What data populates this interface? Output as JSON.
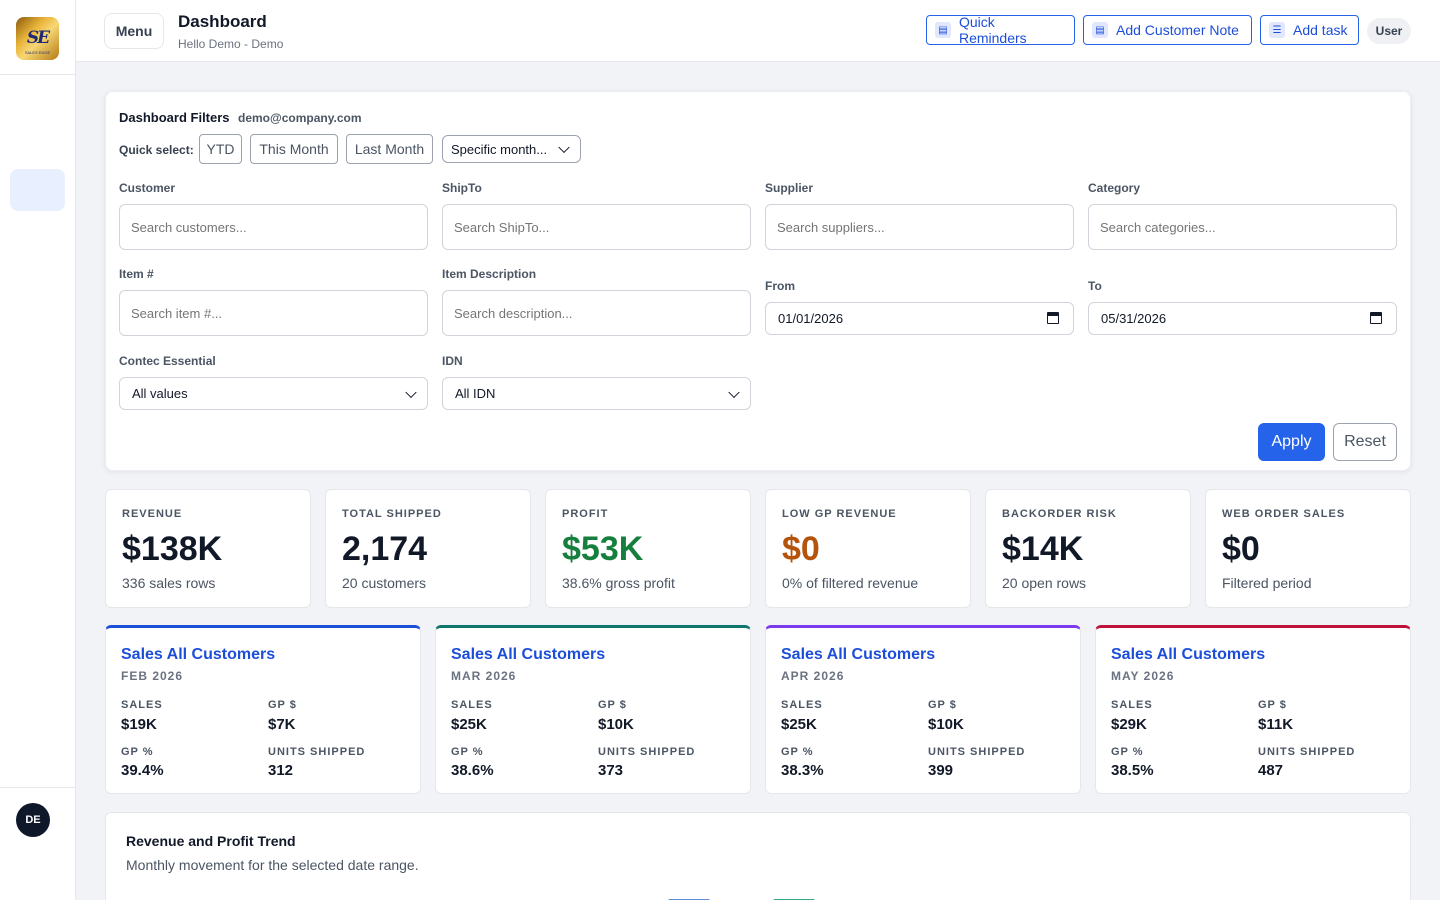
{
  "sidebar": {
    "logo_mark": "SE",
    "logo_sub": "SALES EDGE",
    "avatar": "DE"
  },
  "header": {
    "menu_label": "Menu",
    "title": "Dashboard",
    "subtitle": "Hello Demo - Demo",
    "buttons": [
      {
        "label": "Quick Reminders",
        "icon": "reminder-icon"
      },
      {
        "label": "Add Customer Note",
        "icon": "note-icon"
      },
      {
        "label": "Add task",
        "icon": "task-list-icon"
      }
    ],
    "user_label": "User"
  },
  "filters": {
    "title": "Dashboard Filters",
    "email": "demo@company.com",
    "quick_select_label": "Quick select:",
    "quick_chips": [
      "YTD",
      "This Month",
      "Last Month"
    ],
    "month_select": "Specific month...",
    "customer": {
      "label": "Customer",
      "placeholder": "Search customers..."
    },
    "shipto": {
      "label": "ShipTo",
      "placeholder": "Search ShipTo..."
    },
    "supplier": {
      "label": "Supplier",
      "placeholder": "Search suppliers..."
    },
    "category": {
      "label": "Category",
      "placeholder": "Search categories..."
    },
    "item_no": {
      "label": "Item #",
      "placeholder": "Search item #..."
    },
    "item_desc": {
      "label": "Item Description",
      "placeholder": "Search description..."
    },
    "from": {
      "label": "From",
      "value": "01/01/2026"
    },
    "to": {
      "label": "To",
      "value": "05/31/2026"
    },
    "contec": {
      "label": "Contec Essential",
      "value": "All values"
    },
    "idn": {
      "label": "IDN",
      "value": "All IDN"
    },
    "apply_label": "Apply",
    "reset_label": "Reset"
  },
  "kpis": [
    {
      "label": "REVENUE",
      "value": "$138K",
      "sub": "336 sales rows",
      "color": "#111827"
    },
    {
      "label": "TOTAL SHIPPED",
      "value": "2,174",
      "sub": "20 customers",
      "color": "#111827"
    },
    {
      "label": "PROFIT",
      "value": "$53K",
      "sub": "38.6% gross profit",
      "color": "#15803d"
    },
    {
      "label": "LOW GP REVENUE",
      "value": "$0",
      "sub": "0% of filtered revenue",
      "color": "#b45309"
    },
    {
      "label": "BACKORDER RISK",
      "value": "$14K",
      "sub": "20 open rows",
      "color": "#111827"
    },
    {
      "label": "WEB ORDER SALES",
      "value": "$0",
      "sub": "Filtered period",
      "color": "#111827"
    }
  ],
  "months": [
    {
      "title": "Sales All Customers",
      "month": "FEB 2026",
      "accent": "#1d4ed8",
      "sales_label": "SALES",
      "sales": "$19K",
      "gp_label": "GP $",
      "gp": "$7K",
      "gpp_label": "GP %",
      "gpp": "39.4%",
      "units_label": "UNITS SHIPPED",
      "units": "312"
    },
    {
      "title": "Sales All Customers",
      "month": "MAR 2026",
      "accent": "#0f766e",
      "sales_label": "SALES",
      "sales": "$25K",
      "gp_label": "GP $",
      "gp": "$10K",
      "gpp_label": "GP %",
      "gpp": "38.6%",
      "units_label": "UNITS SHIPPED",
      "units": "373"
    },
    {
      "title": "Sales All Customers",
      "month": "APR 2026",
      "accent": "#7c3aed",
      "sales_label": "SALES",
      "sales": "$25K",
      "gp_label": "GP $",
      "gp": "$10K",
      "gpp_label": "GP %",
      "gpp": "38.3%",
      "units_label": "UNITS SHIPPED",
      "units": "399"
    },
    {
      "title": "Sales All Customers",
      "month": "MAY 2026",
      "accent": "#be123c",
      "sales_label": "SALES",
      "sales": "$29K",
      "gp_label": "GP $",
      "gp": "$11K",
      "gpp_label": "GP %",
      "gpp": "38.5%",
      "units_label": "UNITS SHIPPED",
      "units": "487"
    }
  ],
  "trend": {
    "title": "Revenue and Profit Trend",
    "subtitle": "Monthly movement for the selected date range.",
    "legend_colors": [
      "#5b8fd8",
      "#34a884"
    ]
  }
}
